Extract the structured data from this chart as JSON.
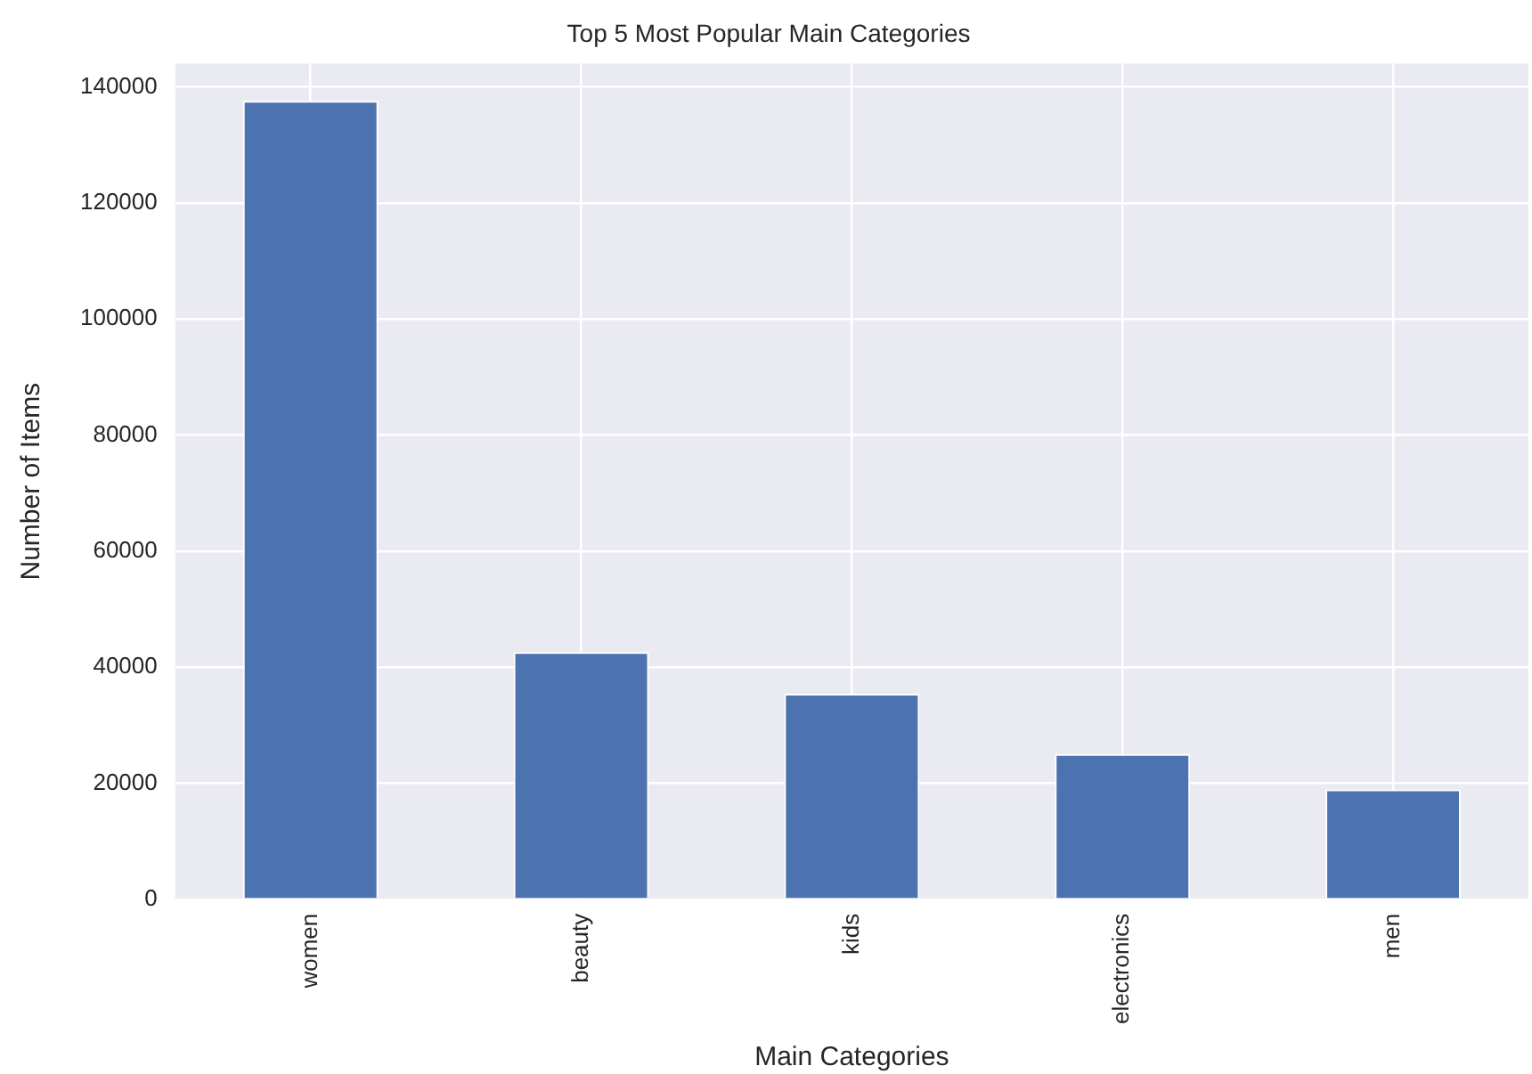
{
  "chart_data": {
    "type": "bar",
    "title": "Top 5 Most Popular Main Categories",
    "xlabel": "Main Categories",
    "ylabel": "Number of Items",
    "categories": [
      "women",
      "beauty",
      "kids",
      "electronics",
      "men"
    ],
    "values": [
      137600,
      42600,
      35400,
      25000,
      18900
    ],
    "color": "#4c72b0",
    "ylim": [
      0,
      144000
    ],
    "yticks": [
      0,
      20000,
      40000,
      60000,
      80000,
      100000,
      120000,
      140000
    ],
    "grid": true
  }
}
